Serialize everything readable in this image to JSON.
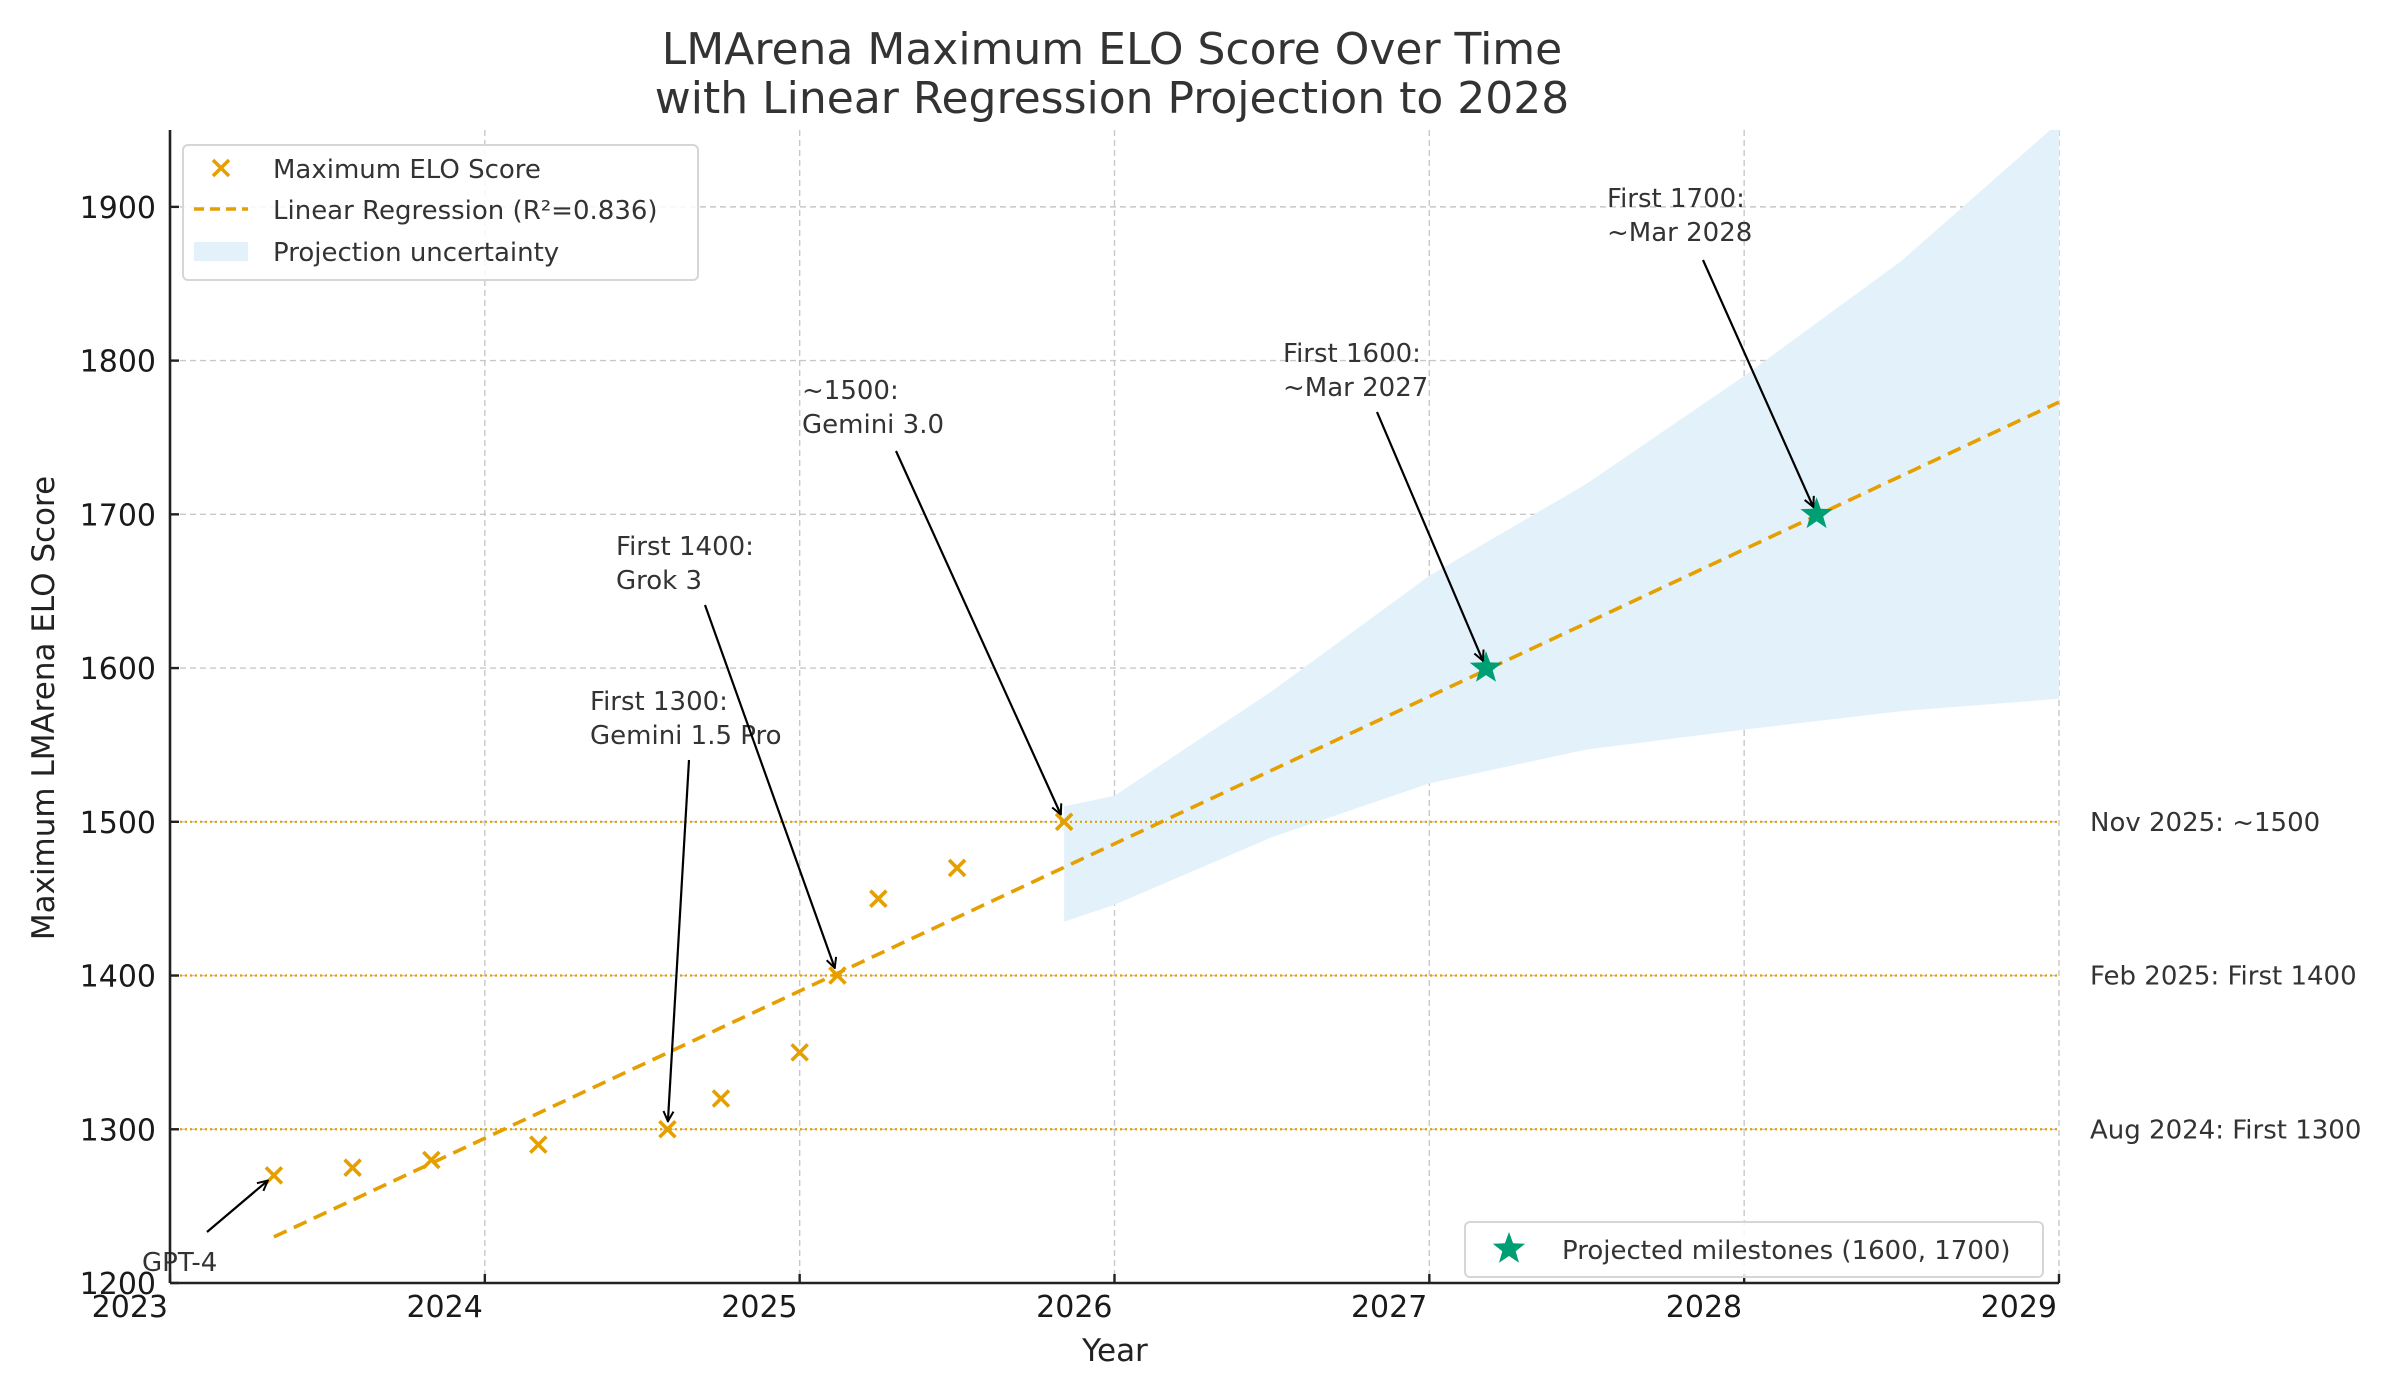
{
  "chart_data": {
    "type": "scatter",
    "title": [
      "LMArena Maximum ELO Score Over Time",
      "with Linear Regression Projection to 2028"
    ],
    "xlabel": "Year",
    "ylabel": "Maximum LMArena ELO Score",
    "xlim": [
      2023,
      2029
    ],
    "ylim": [
      1200,
      1950
    ],
    "xticks": [
      2023,
      2024,
      2025,
      2026,
      2027,
      2028,
      2029
    ],
    "xtick_labels": [
      "2023",
      "2024",
      "2025",
      "2026",
      "2027",
      "2028",
      "2029"
    ],
    "yticks": [
      1200,
      1300,
      1400,
      1500,
      1600,
      1700,
      1800,
      1900
    ],
    "ytick_labels": [
      "1200",
      "1300",
      "1400",
      "1500",
      "1600",
      "1700",
      "1800",
      "1900"
    ],
    "grid": true,
    "series": [
      {
        "name": "Maximum ELO Score",
        "kind": "scatter",
        "marker": "x",
        "color": "#E69F00",
        "x": [
          2023.33,
          2023.58,
          2023.83,
          2024.17,
          2024.58,
          2024.75,
          2025.0,
          2025.12,
          2025.25,
          2025.5,
          2025.84
        ],
        "y": [
          1270,
          1275,
          1280,
          1290,
          1300,
          1320,
          1350,
          1400,
          1450,
          1470,
          1500
        ]
      },
      {
        "name": "Linear Regression (R²=0.836)",
        "kind": "line",
        "style": "dashed",
        "color": "#E69F00",
        "x": [
          2023.33,
          2029.0
        ],
        "y": [
          1230,
          1773
        ]
      },
      {
        "name": "Projection uncertainty",
        "kind": "band",
        "color": "#E3F2FA",
        "x": [
          2025.84,
          2026.0,
          2026.5,
          2027.0,
          2027.5,
          2028.0,
          2028.5,
          2029.0
        ],
        "lower": [
          1435,
          1446,
          1490,
          1525,
          1547,
          1560,
          1572,
          1580
        ],
        "upper": [
          1510,
          1517,
          1585,
          1660,
          1720,
          1790,
          1865,
          1955
        ]
      },
      {
        "name": "Projected milestones (1600, 1700)",
        "kind": "scatter",
        "marker": "star",
        "color": "#009E73",
        "x": [
          2027.18,
          2028.23
        ],
        "y": [
          1600,
          1700
        ]
      }
    ],
    "reference_lines": [
      {
        "y": 1500,
        "label": "Nov 2025: ~1500",
        "color": "#E69F00"
      },
      {
        "y": 1400,
        "label": "Feb 2025: First 1400",
        "color": "#E69F00"
      },
      {
        "y": 1300,
        "label": "Aug 2024: First 1300",
        "color": "#E69F00"
      }
    ],
    "annotations": [
      {
        "lines": [
          "GPT-4"
        ],
        "target": [
          2023.33,
          1270
        ]
      },
      {
        "lines": [
          "First 1300:",
          "Gemini 1.5 Pro"
        ],
        "target": [
          2024.58,
          1300
        ]
      },
      {
        "lines": [
          "First 1400:",
          "Grok 3"
        ],
        "target": [
          2025.12,
          1400
        ]
      },
      {
        "lines": [
          "~1500:",
          "Gemini 3.0"
        ],
        "target": [
          2025.84,
          1500
        ]
      },
      {
        "lines": [
          "First 1600:",
          "~Mar 2027"
        ],
        "target": [
          2027.18,
          1600
        ]
      },
      {
        "lines": [
          "First 1700:",
          "~Mar 2028"
        ],
        "target": [
          2028.23,
          1700
        ]
      }
    ],
    "legends": [
      {
        "placement": "upper-left",
        "entries": [
          "Maximum ELO Score",
          "Linear Regression (R²=0.836)",
          "Projection uncertainty"
        ]
      },
      {
        "placement": "lower-right",
        "entries": [
          "Projected milestones (1600, 1700)"
        ]
      }
    ]
  }
}
